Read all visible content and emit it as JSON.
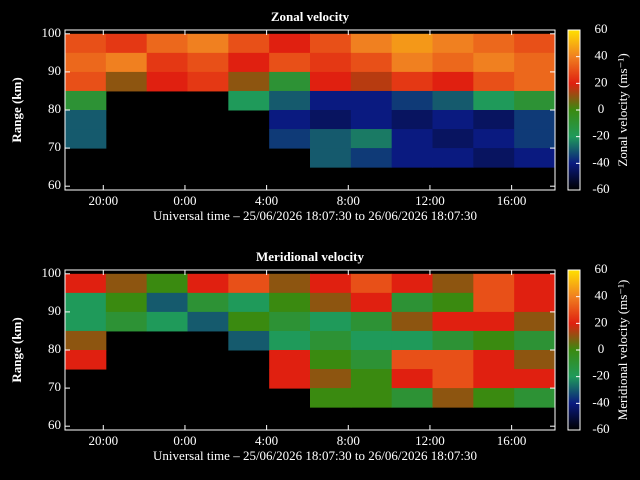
{
  "chart_data": [
    {
      "type": "heatmap",
      "title": "Zonal velocity",
      "ylabel": "Range (km)",
      "xlabel": "Universal time – 25/06/2026 18:07:30 to 26/06/2026 18:07:30",
      "colorbar_label": "Zonal velocity (ms⁻¹)",
      "xlim": [
        18.125,
        42.125
      ],
      "xticks": [
        {
          "value": 20,
          "label": "20:00"
        },
        {
          "value": 24,
          "label": "0:00"
        },
        {
          "value": 28,
          "label": "4:00"
        },
        {
          "value": 32,
          "label": "8:00"
        },
        {
          "value": 36,
          "label": "12:00"
        },
        {
          "value": 40,
          "label": "16:00"
        }
      ],
      "ylim": [
        59,
        101
      ],
      "yticks": [
        60,
        70,
        80,
        90,
        100
      ],
      "zlim": [
        -60,
        60
      ],
      "zticks": [
        -60,
        -40,
        -20,
        0,
        20,
        40,
        60
      ],
      "colorscale": [
        "#000000",
        "#0a1a80",
        "#1f9a5a",
        "#3a8a10",
        "#e02010",
        "#f08020",
        "#ffe000"
      ],
      "x": [
        19.125,
        21.125,
        23.125,
        25.125,
        27.125,
        29.125,
        31.125,
        33.125,
        35.125,
        37.125,
        39.125,
        41.125
      ],
      "y": [
        97.5,
        92.5,
        87.5,
        82.5,
        77.5,
        72.5,
        67.5,
        62.5
      ],
      "z": [
        [
          30,
          25,
          35,
          40,
          30,
          20,
          30,
          40,
          45,
          40,
          35,
          30
        ],
        [
          35,
          40,
          25,
          30,
          20,
          30,
          25,
          30,
          40,
          35,
          40,
          35
        ],
        [
          30,
          10,
          20,
          25,
          10,
          -10,
          20,
          15,
          25,
          20,
          30,
          35
        ],
        [
          -10,
          null,
          null,
          null,
          -20,
          -30,
          -40,
          -40,
          -35,
          -30,
          -20,
          -10
        ],
        [
          -30,
          null,
          null,
          null,
          null,
          -40,
          -45,
          -40,
          -45,
          -40,
          -45,
          -35
        ],
        [
          -30,
          null,
          null,
          null,
          null,
          -35,
          -30,
          -25,
          -40,
          -45,
          -40,
          -35
        ],
        [
          null,
          null,
          null,
          null,
          null,
          null,
          -30,
          -35,
          -40,
          -40,
          -45,
          -40
        ],
        [
          null,
          null,
          null,
          null,
          null,
          null,
          null,
          null,
          null,
          null,
          null,
          null
        ]
      ]
    },
    {
      "type": "heatmap",
      "title": "Meridional velocity",
      "ylabel": "Range (km)",
      "xlabel": "Universal time – 25/06/2026 18:07:30 to 26/06/2026 18:07:30",
      "colorbar_label": "Meridional velocity (ms⁻¹)",
      "xlim": [
        18.125,
        42.125
      ],
      "xticks": [
        {
          "value": 20,
          "label": "20:00"
        },
        {
          "value": 24,
          "label": "0:00"
        },
        {
          "value": 28,
          "label": "4:00"
        },
        {
          "value": 32,
          "label": "8:00"
        },
        {
          "value": 36,
          "label": "12:00"
        },
        {
          "value": 40,
          "label": "16:00"
        }
      ],
      "ylim": [
        59,
        101
      ],
      "yticks": [
        60,
        70,
        80,
        90,
        100
      ],
      "zlim": [
        -60,
        60
      ],
      "zticks": [
        -60,
        -40,
        -20,
        0,
        20,
        40,
        60
      ],
      "colorscale": [
        "#000000",
        "#0a1a80",
        "#1f9a5a",
        "#3a8a10",
        "#e02010",
        "#f08020",
        "#ffe000"
      ],
      "x": [
        19.125,
        21.125,
        23.125,
        25.125,
        27.125,
        29.125,
        31.125,
        33.125,
        35.125,
        37.125,
        39.125,
        41.125
      ],
      "y": [
        97.5,
        92.5,
        87.5,
        82.5,
        77.5,
        72.5,
        67.5,
        62.5
      ],
      "z": [
        [
          20,
          10,
          0,
          20,
          30,
          10,
          20,
          30,
          20,
          10,
          30,
          20
        ],
        [
          -20,
          0,
          -30,
          -10,
          -20,
          0,
          10,
          20,
          -10,
          0,
          30,
          20
        ],
        [
          -20,
          -10,
          -20,
          -30,
          0,
          -10,
          -20,
          -10,
          10,
          20,
          20,
          10
        ],
        [
          10,
          null,
          null,
          null,
          -30,
          -20,
          -10,
          -20,
          -20,
          -10,
          0,
          -10
        ],
        [
          20,
          null,
          null,
          null,
          null,
          20,
          0,
          -10,
          30,
          30,
          20,
          10
        ],
        [
          null,
          null,
          null,
          null,
          null,
          20,
          10,
          0,
          20,
          30,
          20,
          20
        ],
        [
          null,
          null,
          null,
          null,
          null,
          null,
          0,
          0,
          -10,
          10,
          0,
          -10
        ],
        [
          null,
          null,
          null,
          null,
          null,
          null,
          null,
          null,
          null,
          null,
          null,
          null
        ]
      ]
    }
  ]
}
